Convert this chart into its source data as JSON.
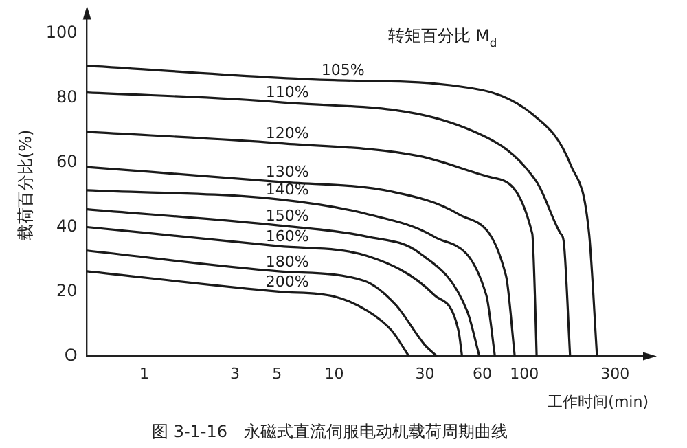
{
  "chart_data": {
    "type": "line",
    "title": "图 3-1-16　永磁式直流伺服电动机载荷周期曲线",
    "xlabel": "工作时间(min)",
    "ylabel": "载荷百分比(%)",
    "legend_title": "转矩百分比 M$_{d}$",
    "log": "x",
    "xlim": [
      0.5,
      450
    ],
    "xticks": [
      1,
      3,
      5,
      10,
      30,
      60,
      100,
      300
    ],
    "ylim": [
      0,
      106
    ],
    "yticks": [
      {
        "value": 0,
        "label": "O"
      },
      20,
      40,
      60,
      80,
      100
    ],
    "grid": false,
    "legend": false,
    "marker": "none",
    "line_style": "solid",
    "series": [
      {
        "name": "105%",
        "color": "#1a1a1a",
        "x": [
          0.5,
          10,
          40,
          110,
          176,
          219,
          241
        ],
        "values": [
          90,
          85.5,
          84,
          75,
          59,
          38,
          0
        ]
      },
      {
        "name": "110%",
        "color": "#1a1a1a",
        "x": [
          0.5,
          5.1,
          50,
          116,
          155,
          161,
          174
        ],
        "values": [
          81.7,
          78.7,
          70.5,
          54,
          38,
          35.6,
          0
        ]
      },
      {
        "name": "120%",
        "color": "#1a1a1a",
        "x": [
          0.5,
          5.1,
          28,
          66,
          110,
          114,
          116
        ],
        "values": [
          69.5,
          66,
          62,
          55.5,
          38,
          16,
          0
        ]
      },
      {
        "name": "130%",
        "color": "#1a1a1a",
        "x": [
          0.5,
          5.1,
          20,
          45,
          80,
          89
        ],
        "values": [
          58.6,
          54,
          51,
          44,
          25,
          0
        ]
      },
      {
        "name": "140%",
        "color": "#1a1a1a",
        "x": [
          0.5,
          5.1,
          15,
          33.6,
          63,
          70
        ],
        "values": [
          51.4,
          48.6,
          44,
          37,
          19,
          0
        ]
      },
      {
        "name": "150%",
        "color": "#1a1a1a",
        "x": [
          0.5,
          5.1,
          15,
          28,
          50,
          58
        ],
        "values": [
          45.5,
          40.5,
          37,
          32,
          14,
          0
        ]
      },
      {
        "name": "160%",
        "color": "#1a1a1a",
        "x": [
          0.5,
          5.1,
          15,
          33.5,
          45,
          47
        ],
        "values": [
          40,
          34.1,
          31,
          19,
          8,
          0
        ]
      },
      {
        "name": "180%",
        "color": "#1a1a1a",
        "x": [
          0.5,
          5.1,
          14.3,
          21,
          30,
          34.7
        ],
        "values": [
          32.7,
          26.3,
          23.4,
          16,
          3.4,
          0
        ]
      },
      {
        "name": "200%",
        "color": "#1a1a1a",
        "x": [
          0.5,
          5.1,
          10,
          15,
          20,
          24.7
        ],
        "values": [
          26.3,
          20,
          18.5,
          14,
          8,
          0
        ]
      }
    ]
  }
}
